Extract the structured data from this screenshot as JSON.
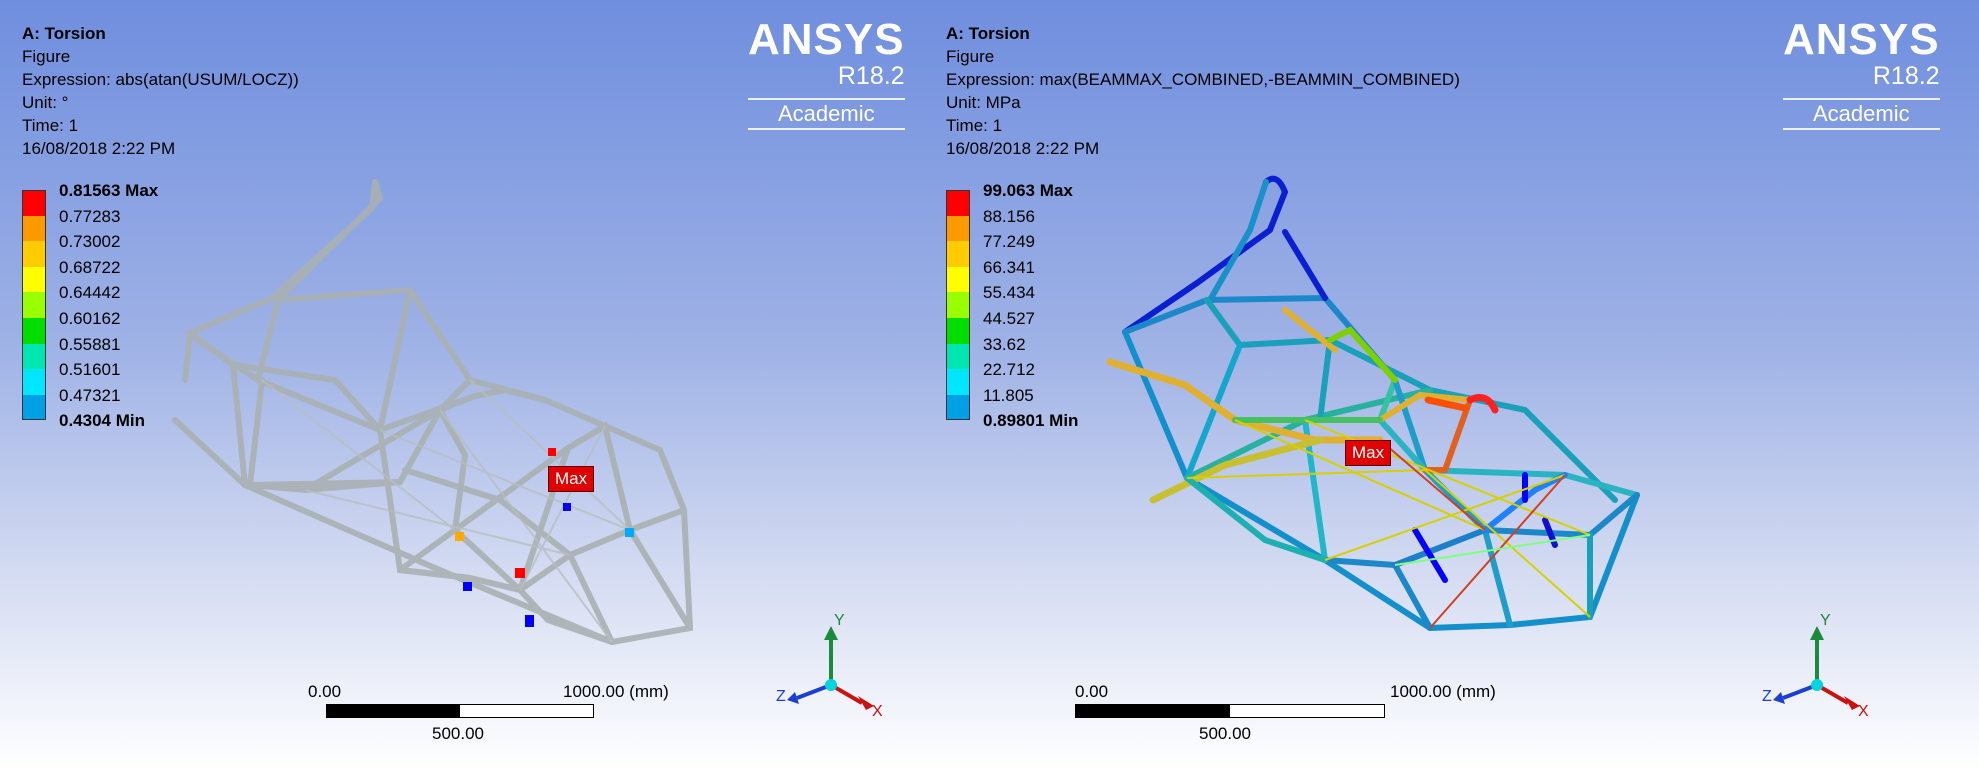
{
  "left": {
    "title": "A: Torsion",
    "type": "Figure",
    "expression": "Expression: abs(atan(USUM/LOCZ))",
    "unit": "Unit: °",
    "time": "Time: 1",
    "date": "16/08/2018 2:22 PM",
    "legend": [
      "0.81563 Max",
      "0.77283",
      "0.73002",
      "0.68722",
      "0.64442",
      "0.60162",
      "0.55881",
      "0.51601",
      "0.47321",
      "0.4304 Min"
    ],
    "max_label": "Max",
    "scale": {
      "start": "0.00",
      "end": "1000.00 (mm)",
      "mid": "500.00"
    }
  },
  "right": {
    "title": "A: Torsion",
    "type": "Figure",
    "expression": "Expression: max(BEAMMAX_COMBINED,-BEAMMIN_COMBINED)",
    "unit": "Unit: MPa",
    "time": "Time: 1",
    "date": "16/08/2018 2:22 PM",
    "legend": [
      "99.063 Max",
      "88.156",
      "77.249",
      "66.341",
      "55.434",
      "44.527",
      "33.62",
      "22.712",
      "11.805",
      "0.89801 Min"
    ],
    "max_label": "Max",
    "scale": {
      "start": "0.00",
      "end": "1000.00 (mm)",
      "mid": "500.00"
    }
  },
  "brand": {
    "name": "ANSYS",
    "version": "R18.2",
    "edition": "Academic"
  },
  "triad": {
    "y": "Y",
    "x": "X",
    "z": "Z"
  },
  "legend_colors": [
    "#ff0000",
    "#ff9900",
    "#ffcc00",
    "#ffff00",
    "#99ff00",
    "#00dd00",
    "#00e6b0",
    "#00e6ff",
    "#00a0e6",
    "#0000ff"
  ]
}
